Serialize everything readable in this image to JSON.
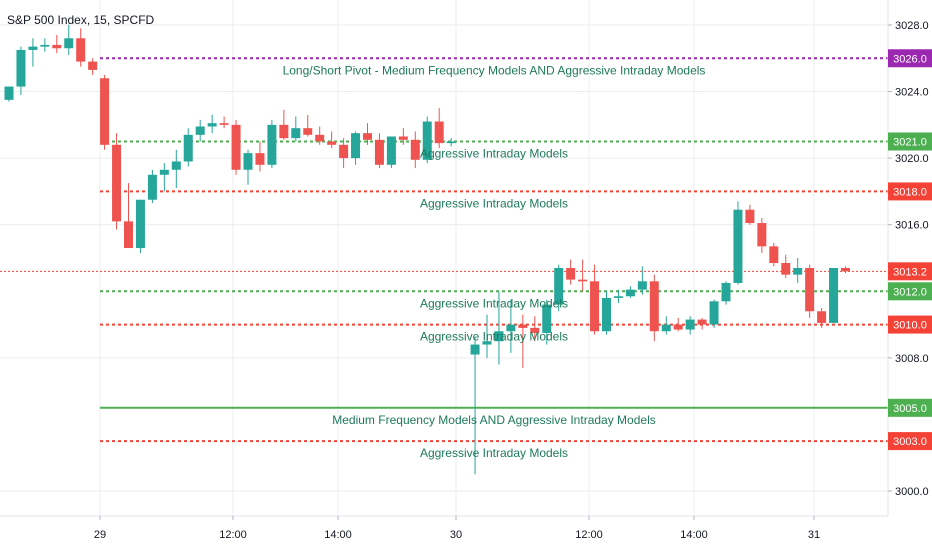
{
  "chart_data": {
    "type": "candlestick",
    "title": "S&P 500 Index, 15, SPCFD",
    "ylim": [
      2998.5,
      3029.5
    ],
    "y_ticks": [
      "3028.0",
      "3024.0",
      "3020.0",
      "3016.0",
      "3008.0",
      "3000.0"
    ],
    "x_ticks": [
      "29",
      "12:00",
      "14:00",
      "30",
      "12:00",
      "14:00",
      "31"
    ],
    "colors": {
      "up": "#26a69a",
      "down": "#ef5350",
      "pivot": "#9c27b0",
      "support": "#4caf50",
      "resistance": "#f44336",
      "grid": "#e9ecf2",
      "text": "#131722",
      "annotation": "#1e7a5a"
    },
    "levels": [
      {
        "price": 3026.0,
        "label": "3026.0",
        "style": "dotted",
        "color": "#9c27b0",
        "annotation": "Long/Short Pivot - Medium Frequency Models AND Aggressive Intraday Models"
      },
      {
        "price": 3021.0,
        "label": "3021.0",
        "style": "dotted",
        "color": "#4caf50",
        "annotation": "Aggressive Intraday Models"
      },
      {
        "price": 3018.0,
        "label": "3018.0",
        "style": "dotted",
        "color": "#f44336",
        "annotation": "Aggressive Intraday Models"
      },
      {
        "price": 3013.2,
        "label": "3013.2",
        "style": "thin-dotted",
        "color": "#f44336",
        "annotation": ""
      },
      {
        "price": 3012.0,
        "label": "3012.0",
        "style": "dotted",
        "color": "#4caf50",
        "annotation": "Aggressive Intraday Models"
      },
      {
        "price": 3010.0,
        "label": "3010.0",
        "style": "dotted",
        "color": "#f44336",
        "annotation": "Aggressive Intraday Models"
      },
      {
        "price": 3005.0,
        "label": "3005.0",
        "style": "solid",
        "color": "#4caf50",
        "annotation": "Medium Frequency Models AND Aggressive Intraday Models"
      },
      {
        "price": 3003.0,
        "label": "3003.0",
        "style": "dotted",
        "color": "#f44336",
        "annotation": "Aggressive Intraday Models"
      }
    ],
    "candles": [
      [
        3023.5,
        3024.3,
        3023.4,
        3024.3
      ],
      [
        3024.3,
        3026.7,
        3023.8,
        3026.5
      ],
      [
        3026.5,
        3027.2,
        3025.5,
        3026.7
      ],
      [
        3026.7,
        3027.2,
        3026.4,
        3026.8
      ],
      [
        3026.8,
        3027.4,
        3026.3,
        3026.6
      ],
      [
        3026.6,
        3028.0,
        3026.2,
        3027.2
      ],
      [
        3027.2,
        3027.8,
        3025.5,
        3025.8
      ],
      [
        3025.8,
        3026.0,
        3025.0,
        3025.3
      ],
      [
        3024.8,
        3025.0,
        3020.5,
        3020.8
      ],
      [
        3020.8,
        3021.5,
        3015.7,
        3016.2
      ],
      [
        3016.2,
        3018.5,
        3014.6,
        3014.6
      ],
      [
        3014.6,
        3017.5,
        3014.3,
        3017.5
      ],
      [
        3017.5,
        3019.3,
        3017.3,
        3019.0
      ],
      [
        3019.0,
        3019.7,
        3018.0,
        3019.3
      ],
      [
        3019.3,
        3020.5,
        3018.2,
        3019.8
      ],
      [
        3019.8,
        3021.8,
        3019.5,
        3021.4
      ],
      [
        3021.4,
        3022.3,
        3021.0,
        3021.9
      ],
      [
        3021.9,
        3022.6,
        3021.5,
        3022.1
      ],
      [
        3022.1,
        3022.5,
        3021.8,
        3022.0
      ],
      [
        3022.0,
        3022.3,
        3019.0,
        3019.3
      ],
      [
        3019.3,
        3020.5,
        3018.4,
        3020.3
      ],
      [
        3020.3,
        3021.0,
        3019.2,
        3019.6
      ],
      [
        3019.6,
        3022.3,
        3019.4,
        3022.0
      ],
      [
        3022.0,
        3022.9,
        3021.1,
        3021.2
      ],
      [
        3021.2,
        3022.5,
        3021.0,
        3021.8
      ],
      [
        3021.8,
        3022.6,
        3021.3,
        3021.4
      ],
      [
        3021.4,
        3021.9,
        3020.8,
        3021.0
      ],
      [
        3021.0,
        3021.6,
        3020.6,
        3020.8
      ],
      [
        3020.8,
        3021.2,
        3019.4,
        3020.0
      ],
      [
        3020.0,
        3021.6,
        3019.6,
        3021.5
      ],
      [
        3021.5,
        3022.1,
        3020.8,
        3021.1
      ],
      [
        3021.1,
        3021.5,
        3019.4,
        3019.6
      ],
      [
        3019.6,
        3021.3,
        3019.4,
        3021.3
      ],
      [
        3021.3,
        3021.8,
        3020.8,
        3021.1
      ],
      [
        3021.1,
        3021.6,
        3019.4,
        3019.9
      ],
      [
        3019.9,
        3022.5,
        3019.7,
        3022.2
      ],
      [
        3022.2,
        3023.0,
        3020.6,
        3020.9
      ],
      [
        3020.9,
        3021.2,
        3020.7,
        3021.0
      ],
      [
        3008.2,
        3009.2,
        3001.0,
        3008.8
      ],
      [
        3008.8,
        3010.6,
        3008.0,
        3009.0
      ],
      [
        3009.0,
        3012.0,
        3007.6,
        3009.6
      ],
      [
        3009.6,
        3011.5,
        3008.3,
        3010.0
      ],
      [
        3010.0,
        3010.6,
        3007.4,
        3009.8
      ],
      [
        3009.8,
        3010.5,
        3009.0,
        3009.5
      ],
      [
        3009.5,
        3011.5,
        3008.8,
        3011.2
      ],
      [
        3011.2,
        3013.6,
        3010.8,
        3013.4
      ],
      [
        3013.4,
        3013.9,
        3012.4,
        3012.7
      ],
      [
        3012.7,
        3013.9,
        3012.0,
        3012.6
      ],
      [
        3012.6,
        3013.6,
        3009.4,
        3009.6
      ],
      [
        3009.6,
        3012.0,
        3009.4,
        3011.6
      ],
      [
        3011.6,
        3012.1,
        3011.3,
        3011.7
      ],
      [
        3011.7,
        3012.3,
        3011.6,
        3012.1
      ],
      [
        3012.1,
        3013.5,
        3011.8,
        3012.6
      ],
      [
        3012.6,
        3013.0,
        3009.0,
        3009.6
      ],
      [
        3009.6,
        3010.5,
        3009.4,
        3010.0
      ],
      [
        3010.0,
        3010.4,
        3009.6,
        3009.7
      ],
      [
        3009.7,
        3010.5,
        3009.4,
        3010.3
      ],
      [
        3010.3,
        3010.4,
        3009.7,
        3010.0
      ],
      [
        3010.0,
        3011.5,
        3009.8,
        3011.4
      ],
      [
        3011.4,
        3012.6,
        3011.2,
        3012.5
      ],
      [
        3012.5,
        3017.4,
        3012.4,
        3016.9
      ],
      [
        3016.9,
        3017.2,
        3016.0,
        3016.1
      ],
      [
        3016.1,
        3016.4,
        3014.3,
        3014.7
      ],
      [
        3014.7,
        3014.9,
        3013.5,
        3013.7
      ],
      [
        3013.7,
        3014.2,
        3012.8,
        3013.0
      ],
      [
        3013.0,
        3014.0,
        3012.5,
        3013.4
      ],
      [
        3013.4,
        3013.6,
        3010.4,
        3010.8
      ],
      [
        3010.8,
        3011.0,
        3009.8,
        3010.1
      ],
      [
        3010.1,
        3013.4,
        3010.1,
        3013.4
      ],
      [
        3013.4,
        3013.5,
        3013.1,
        3013.2
      ]
    ]
  }
}
